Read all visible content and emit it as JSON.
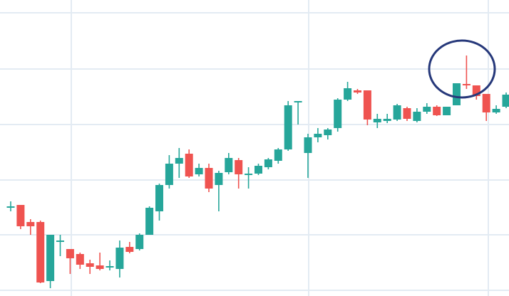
{
  "chart_data": {
    "type": "candlestick",
    "open": [
      125,
      128,
      104,
      104,
      21,
      76,
      66,
      59,
      46,
      43,
      40,
      38,
      69,
      66,
      86,
      119,
      156,
      186,
      200,
      171,
      180,
      156,
      174,
      191,
      170,
      172,
      181,
      190,
      206,
      272,
      201,
      223,
      226,
      236,
      276,
      289,
      289,
      244,
      246,
      248,
      264,
      246,
      259,
      266,
      254,
      268,
      298,
      296,
      284,
      258,
      266
    ],
    "high": [
      133,
      128,
      108,
      106,
      86,
      86,
      66,
      61,
      51,
      61,
      50,
      78,
      76,
      88,
      126,
      158,
      198,
      208,
      206,
      186,
      186,
      176,
      201,
      194,
      181,
      186,
      194,
      208,
      274,
      274,
      228,
      236,
      236,
      278,
      301,
      291,
      289,
      256,
      256,
      270,
      266,
      264,
      271,
      268,
      266,
      299,
      338,
      296,
      284,
      268,
      286
    ],
    "low": [
      119,
      94,
      86,
      18,
      11,
      56,
      31,
      38,
      31,
      36,
      36,
      26,
      60,
      64,
      86,
      106,
      151,
      166,
      166,
      168,
      146,
      119,
      171,
      151,
      151,
      170,
      178,
      186,
      204,
      241,
      166,
      216,
      220,
      231,
      274,
      284,
      240,
      236,
      243,
      246,
      246,
      244,
      256,
      253,
      254,
      268,
      291,
      276,
      246,
      256,
      264
    ],
    "close": [
      126,
      98,
      98,
      19,
      86,
      78,
      53,
      44,
      41,
      38,
      42,
      68,
      62,
      86,
      124,
      156,
      186,
      194,
      168,
      180,
      151,
      173,
      194,
      171,
      172,
      183,
      192,
      206,
      268,
      274,
      223,
      228,
      234,
      276,
      292,
      286,
      248,
      249,
      249,
      268,
      249,
      259,
      266,
      254,
      266,
      299,
      296,
      281,
      258,
      263,
      283
    ],
    "up_color": "#26a69a",
    "down_color": "#ef5350",
    "ylim": [
      0,
      416
    ],
    "yticks": [
      8,
      86,
      163,
      241,
      319,
      398
    ],
    "grid": true
  }
}
